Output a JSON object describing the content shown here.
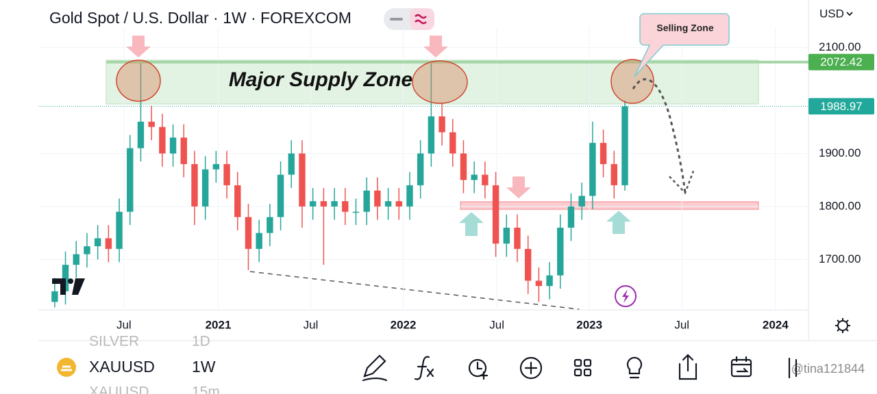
{
  "chart_data": {
    "type": "candlestick",
    "title": "Gold Spot / U.S. Dollar · 1W · FOREXCOM",
    "currency": "USD",
    "open": [
      1620,
      1640,
      1690,
      1710,
      1725,
      1740,
      1720,
      1790,
      1910,
      1960,
      1950,
      1900,
      1930,
      1880,
      1800,
      1870,
      1880,
      1840,
      1780,
      1720,
      1750,
      1780,
      1860,
      1900,
      1800,
      1810,
      1800,
      1810,
      1790,
      1790,
      1830,
      1800,
      1810,
      1800,
      1840,
      1900,
      1970,
      1940,
      1900,
      1850,
      1860,
      1840,
      1730,
      1760,
      1720,
      1660,
      1650,
      1670,
      1760,
      1800,
      1820,
      1920,
      1880,
      1840
    ],
    "high": [
      1665,
      1715,
      1735,
      1750,
      1765,
      1765,
      1815,
      1935,
      2075,
      1990,
      1975,
      1955,
      1955,
      1905,
      1895,
      1905,
      1905,
      1865,
      1805,
      1775,
      1805,
      1885,
      1925,
      1925,
      1835,
      1835,
      1835,
      1835,
      1815,
      1855,
      1855,
      1835,
      1835,
      1865,
      1925,
      2070,
      1995,
      1965,
      1925,
      1885,
      1885,
      1865,
      1785,
      1785,
      1745,
      1685,
      1695,
      1785,
      1825,
      1845,
      1960,
      1945,
      1905,
      2000
    ],
    "low": [
      1610,
      1615,
      1665,
      1685,
      1700,
      1695,
      1695,
      1765,
      1885,
      1925,
      1875,
      1875,
      1855,
      1765,
      1775,
      1845,
      1815,
      1755,
      1680,
      1695,
      1725,
      1755,
      1835,
      1760,
      1775,
      1690,
      1775,
      1765,
      1765,
      1765,
      1775,
      1775,
      1775,
      1775,
      1815,
      1875,
      1915,
      1875,
      1825,
      1825,
      1815,
      1705,
      1705,
      1695,
      1635,
      1620,
      1625,
      1645,
      1735,
      1775,
      1795,
      1855,
      1815,
      1830
    ],
    "close": [
      1640,
      1690,
      1710,
      1725,
      1740,
      1720,
      1790,
      1910,
      1960,
      1950,
      1900,
      1930,
      1880,
      1800,
      1870,
      1880,
      1840,
      1780,
      1720,
      1750,
      1780,
      1860,
      1900,
      1800,
      1810,
      1800,
      1810,
      1790,
      1790,
      1830,
      1800,
      1810,
      1800,
      1840,
      1900,
      1970,
      1940,
      1900,
      1850,
      1860,
      1840,
      1730,
      1760,
      1720,
      1660,
      1650,
      1670,
      1760,
      1800,
      1820,
      1920,
      1880,
      1840,
      1989
    ],
    "up_color": "#26a69a",
    "down_color": "#ef5350",
    "xlim": [
      -0.5,
      70.07
    ],
    "xticks": [
      {
        "value": 6.43,
        "label": "Jul"
      },
      {
        "value": 15.2,
        "label": "2021"
      },
      {
        "value": 23.8,
        "label": "Jul"
      },
      {
        "value": 32.4,
        "label": "2022"
      },
      {
        "value": 41.1,
        "label": "Jul"
      },
      {
        "value": 49.7,
        "label": "2023"
      },
      {
        "value": 58.3,
        "label": "Jul"
      },
      {
        "value": 67.0,
        "label": "2024"
      }
    ],
    "ylim": [
      1605,
      2125
    ],
    "yticks": [
      {
        "value": 1700,
        "label": "1700.00"
      },
      {
        "value": 1800,
        "label": "1800.00"
      },
      {
        "value": 1900,
        "label": "1900.00"
      },
      {
        "value": 2100,
        "label": "2100.00"
      }
    ],
    "price_lines": [
      {
        "value": 2072.42,
        "color": "#4caf50"
      },
      {
        "value": 1988.97,
        "color": "#22a89a"
      }
    ],
    "annotations": [
      "Major Supply Zone",
      "Selling Zone"
    ]
  },
  "toolbar": {
    "symbol": "XAUUSD",
    "interval": "1W",
    "above": [
      "SILVER",
      "1D"
    ],
    "below": [
      "XAUUSD",
      "15m"
    ],
    "watermark": "@tina121844"
  }
}
